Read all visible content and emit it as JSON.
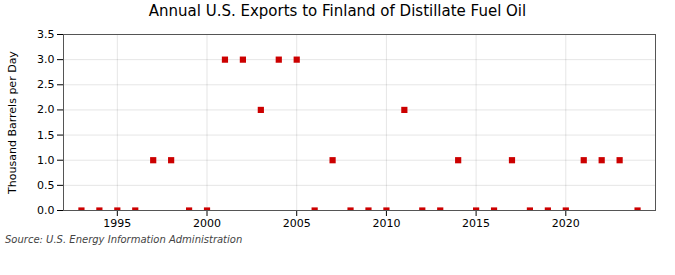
{
  "chart_data": {
    "type": "scatter",
    "title": "Annual U.S. Exports to Finland of Distillate Fuel Oil",
    "ylabel": "Thousand Barrels per Day",
    "annotation": "Source: U.S. Energy Information Administration",
    "x": [
      1993,
      1994,
      1995,
      1996,
      1997,
      1998,
      1999,
      2000,
      2001,
      2002,
      2003,
      2004,
      2005,
      2006,
      2007,
      2008,
      2009,
      2010,
      2011,
      2012,
      2013,
      2014,
      2015,
      2016,
      2017,
      2018,
      2019,
      2020,
      2021,
      2022,
      2023,
      2024
    ],
    "values": [
      0.0,
      0.0,
      0.0,
      0.0,
      1.0,
      1.0,
      0.0,
      0.0,
      3.0,
      3.0,
      2.0,
      3.0,
      3.0,
      0.0,
      1.0,
      0.0,
      0.0,
      0.0,
      2.0,
      0.0,
      0.0,
      1.0,
      0.0,
      0.0,
      1.0,
      0.0,
      0.0,
      0.0,
      1.0,
      1.0,
      1.0,
      0.0
    ],
    "color": "#cc0000",
    "marker": "square",
    "xlim": [
      1992,
      2025
    ],
    "xticks": [
      1995,
      2000,
      2005,
      2010,
      2015,
      2020
    ],
    "ylim": [
      0,
      3.5
    ],
    "yticks": [
      {
        "value": 0,
        "label": "0.0"
      },
      0.5,
      {
        "value": 1,
        "label": "1.0"
      },
      1.5,
      {
        "value": 2,
        "label": "2.0"
      },
      2.5,
      {
        "value": 3,
        "label": "3.0"
      },
      3.5
    ],
    "grid": true
  }
}
